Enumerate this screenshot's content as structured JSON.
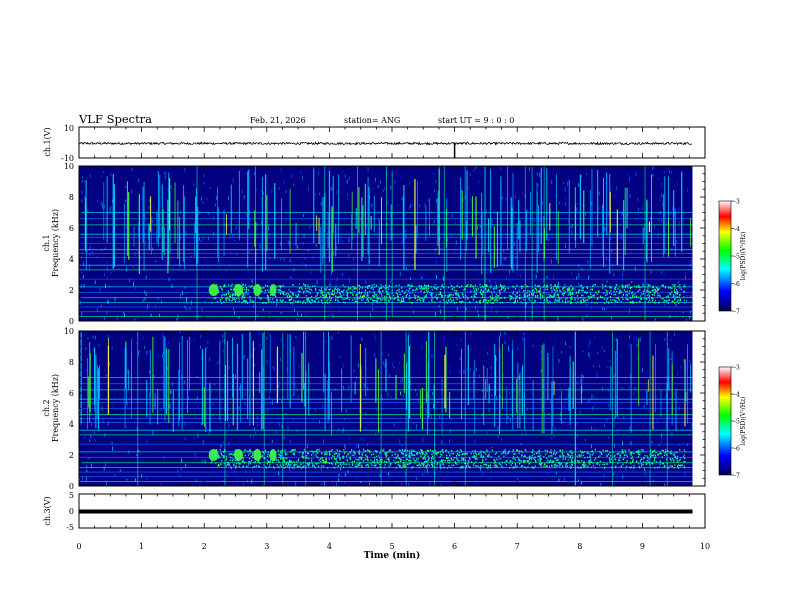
{
  "header": {
    "title": "VLF Spectra",
    "date": "Feb. 21, 2026",
    "station": "station= ANG",
    "start": "start  UT =   9 : 0  : 0"
  },
  "chart_data": {
    "type": "heatmap",
    "xlabel": "Time  (min)",
    "xlim": [
      0,
      10
    ],
    "xticks": [
      "0",
      "1",
      "2",
      "3",
      "4",
      "5",
      "6",
      "7",
      "8",
      "9",
      "10"
    ],
    "panels": [
      {
        "id": "ch1-waveform",
        "kind": "line",
        "ylabel": "ch.1(V)",
        "ylim": [
          -10,
          10
        ],
        "ytick_labels": [
          "10",
          "-10"
        ]
      },
      {
        "id": "ch1-spectrogram",
        "kind": "heatmap",
        "ylabel_1": "ch.1",
        "ylabel_2": "Frequency  (kHz)",
        "ylim": [
          0,
          10
        ],
        "yticks": [
          "0",
          "2",
          "4",
          "6",
          "8",
          "10"
        ]
      },
      {
        "id": "ch2-spectrogram",
        "kind": "heatmap",
        "ylabel_1": "ch.2",
        "ylabel_2": "Frequency  (kHz)",
        "ylim": [
          0,
          10
        ],
        "yticks": [
          "0",
          "2",
          "4",
          "6",
          "8",
          "10"
        ]
      },
      {
        "id": "ch3-waveform",
        "kind": "line",
        "ylabel": "ch.3(V)",
        "ylim": [
          -5,
          5
        ],
        "ytick_labels": [
          "5",
          "0",
          "-5"
        ]
      }
    ],
    "colorbar": {
      "label": "log(PSD)(V²/Hz)",
      "range": [
        -7,
        -3
      ],
      "ticks": [
        "-3",
        "-4",
        "-5",
        "-6",
        "-7"
      ]
    },
    "record_end_min": 9.8,
    "ch1_spike_min": 6.0,
    "whistler_band_khz": [
      1.2,
      2.4
    ]
  },
  "colors": {
    "background": "#000080",
    "axis": "#000000"
  }
}
